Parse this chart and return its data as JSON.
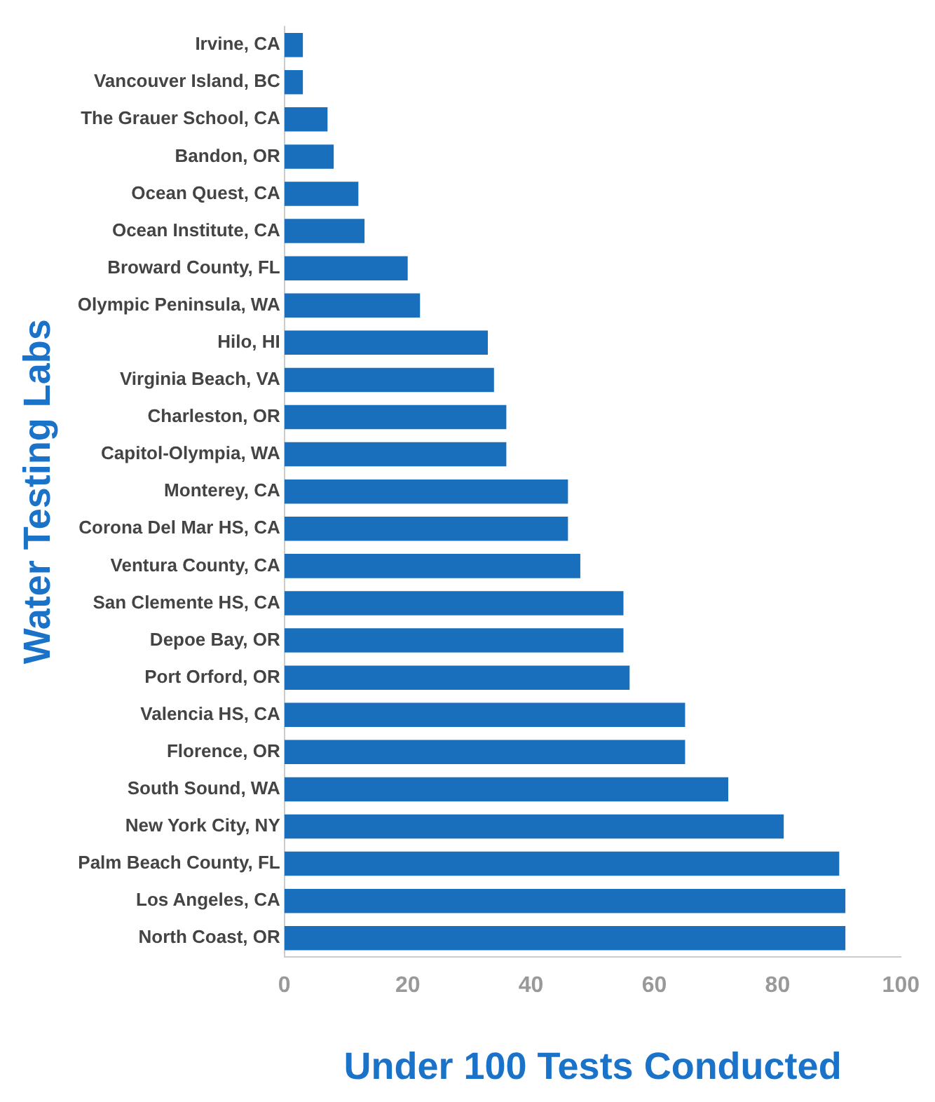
{
  "chart_data": {
    "type": "bar",
    "orientation": "horizontal",
    "xlabel": "Under 100 Tests Conducted",
    "ylabel": "Water Testing Labs",
    "categories": [
      "Irvine, CA",
      "Vancouver Island, BC",
      "The Grauer School, CA",
      "Bandon, OR",
      "Ocean Quest, CA",
      "Ocean Institute, CA",
      "Broward County, FL",
      "Olympic Peninsula, WA",
      "Hilo, HI",
      "Virginia Beach, VA",
      "Charleston, OR",
      "Capitol-Olympia, WA",
      "Monterey, CA",
      "Corona Del Mar HS, CA",
      "Ventura County, CA",
      "San Clemente HS, CA",
      "Depoe Bay, OR",
      "Port Orford, OR",
      "Valencia HS, CA",
      "Florence, OR",
      "South Sound, WA",
      "New York City, NY",
      "Palm Beach County, FL",
      "Los Angeles, CA",
      "North Coast, OR"
    ],
    "values": [
      3,
      3,
      7,
      8,
      12,
      13,
      20,
      22,
      33,
      34,
      36,
      36,
      46,
      46,
      48,
      55,
      55,
      56,
      65,
      65,
      72,
      81,
      90,
      91,
      91
    ],
    "color": "#1a6fbd",
    "xlim": [
      0,
      100
    ],
    "xticks": [
      0,
      20,
      40,
      60,
      80,
      100
    ],
    "grid": false,
    "legend": false
  }
}
